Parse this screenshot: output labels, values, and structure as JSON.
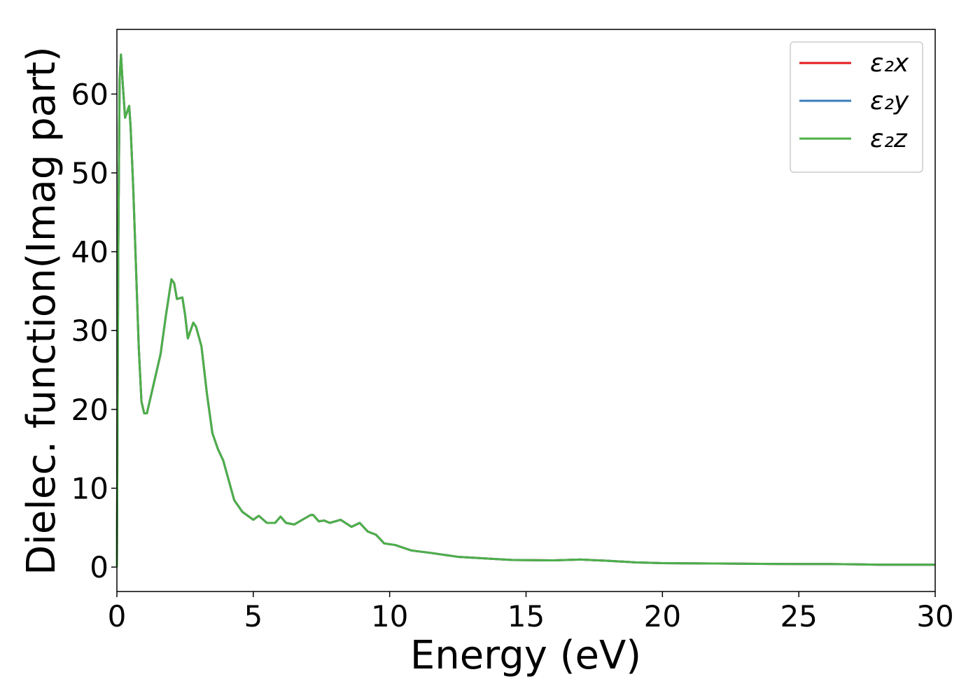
{
  "chart_data": {
    "type": "line",
    "xlabel": "Energy (eV)",
    "ylabel": "Dielec. function(Imag part)",
    "x": [
      0,
      0.05,
      0.1,
      0.15,
      0.2,
      0.3,
      0.4,
      0.45,
      0.5,
      0.6,
      0.7,
      0.8,
      0.9,
      1.0,
      1.1,
      1.2,
      1.4,
      1.6,
      1.8,
      2.0,
      2.1,
      2.2,
      2.4,
      2.5,
      2.6,
      2.7,
      2.8,
      2.9,
      3.1,
      3.3,
      3.5,
      3.7,
      3.9,
      4.1,
      4.3,
      4.6,
      5.0,
      5.2,
      5.5,
      5.8,
      6.0,
      6.2,
      6.5,
      6.8,
      7.1,
      7.2,
      7.4,
      7.6,
      7.8,
      8.2,
      8.6,
      8.9,
      9.2,
      9.5,
      9.8,
      10.2,
      10.8,
      11.5,
      12.5,
      13.5,
      14.5,
      16,
      17,
      18,
      19,
      20,
      22,
      24,
      26,
      27,
      28,
      30
    ],
    "series": [
      {
        "name": "ε₂x",
        "color": "#e41a1c",
        "values": [
          0,
          40,
          62,
          65,
          62,
          57,
          58,
          58.5,
          56,
          48,
          38,
          28,
          21,
          19.5,
          19.5,
          21,
          24,
          27,
          32,
          36.5,
          36,
          34,
          34.2,
          32,
          29,
          30,
          31,
          30.5,
          28,
          22,
          17,
          15,
          13.5,
          11,
          8.5,
          7,
          6,
          6.5,
          5.6,
          5.6,
          6.4,
          5.6,
          5.4,
          6,
          6.6,
          6.6,
          5.8,
          5.9,
          5.6,
          6.0,
          5.1,
          5.6,
          4.5,
          4.1,
          3.0,
          2.8,
          2.1,
          1.8,
          1.3,
          1.1,
          0.9,
          0.85,
          0.95,
          0.8,
          0.6,
          0.5,
          0.45,
          0.4,
          0.38,
          0.35,
          0.3,
          0.3
        ]
      },
      {
        "name": "ε₂y",
        "color": "#377eb8",
        "values": [
          0,
          40,
          62,
          65,
          62,
          57,
          58,
          58.5,
          56,
          48,
          38,
          28,
          21,
          19.5,
          19.5,
          21,
          24,
          27,
          32,
          36.5,
          36,
          34,
          34.2,
          32,
          29,
          30,
          31,
          30.5,
          28,
          22,
          17,
          15,
          13.5,
          11,
          8.5,
          7,
          6,
          6.5,
          5.6,
          5.6,
          6.4,
          5.6,
          5.4,
          6,
          6.6,
          6.6,
          5.8,
          5.9,
          5.6,
          6.0,
          5.1,
          5.6,
          4.5,
          4.1,
          3.0,
          2.8,
          2.1,
          1.8,
          1.3,
          1.1,
          0.9,
          0.85,
          0.95,
          0.8,
          0.6,
          0.5,
          0.45,
          0.4,
          0.38,
          0.35,
          0.3,
          0.3
        ]
      },
      {
        "name": "ε₂z",
        "color": "#4daf4a",
        "values": [
          0,
          40,
          62,
          65,
          62,
          57,
          58,
          58.5,
          56,
          48,
          38,
          28,
          21,
          19.5,
          19.5,
          21,
          24,
          27,
          32,
          36.5,
          36,
          34,
          34.2,
          32,
          29,
          30,
          31,
          30.5,
          28,
          22,
          17,
          15,
          13.5,
          11,
          8.5,
          7,
          6,
          6.5,
          5.6,
          5.6,
          6.4,
          5.6,
          5.4,
          6,
          6.6,
          6.6,
          5.8,
          5.9,
          5.6,
          6.0,
          5.1,
          5.6,
          4.5,
          4.1,
          3.0,
          2.8,
          2.1,
          1.8,
          1.3,
          1.1,
          0.9,
          0.85,
          0.95,
          0.8,
          0.6,
          0.5,
          0.45,
          0.4,
          0.38,
          0.35,
          0.3,
          0.3
        ]
      }
    ],
    "xlim": [
      0,
      30
    ],
    "xticks": [
      0,
      5,
      10,
      15,
      20,
      25,
      30
    ],
    "ylim": [
      -3.1,
      68.2
    ],
    "yticks": [
      0,
      10,
      20,
      30,
      40,
      50,
      60
    ],
    "grid": false,
    "legend": "upper right"
  }
}
